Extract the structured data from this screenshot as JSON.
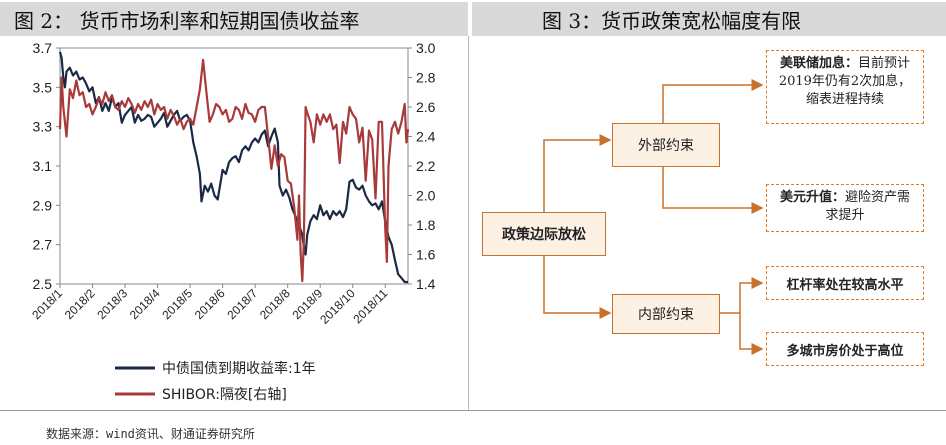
{
  "left_panel": {
    "title": "图 2：  货币市场利率和短期国债收益率"
  },
  "right_panel": {
    "title": "图 3：货币政策宽松幅度有限",
    "center_box": "政策边际放松",
    "upper_mid_box": "外部约束",
    "lower_mid_box": "内部约束",
    "leaf1_title": "美联储加息：",
    "leaf1_body": "目前预计2019年仍有2次加息，缩表进程持续",
    "leaf2_title": "美元升值：",
    "leaf2_body": "避险资产需求提升",
    "leaf3": "杠杆率处在较高水平",
    "leaf4": "多城市房价处于高位",
    "accent_color": "#c9712a",
    "dashed_color": "#e07b28"
  },
  "source": "数据来源：wind资讯、财通证券研究所",
  "chart_data": {
    "type": "line",
    "title": "",
    "x": [
      "2018/1",
      "2018/2",
      "2018/3",
      "2018/4",
      "2018/5",
      "2018/6",
      "2018/7",
      "2018/8",
      "2018/9",
      "2018/10",
      "2018/11"
    ],
    "ylim_left": [
      2.5,
      3.7
    ],
    "yticks_left": [
      "3.7",
      "3.5",
      "3.3",
      "3.1",
      "2.9",
      "2.7",
      "2.5"
    ],
    "ylim_right": [
      1.4,
      3.0
    ],
    "yticks_right": [
      "3.0",
      "2.8",
      "2.6",
      "2.4",
      "2.2",
      "2.0",
      "1.8",
      "1.6",
      "1.4"
    ],
    "series": [
      {
        "name": "中债国债到期收益率:1年",
        "axis": "left",
        "color": "#1a2a45",
        "points": [
          [
            0,
            3.68
          ],
          [
            0.05,
            3.65
          ],
          [
            0.1,
            3.55
          ],
          [
            0.15,
            3.5
          ],
          [
            0.2,
            3.58
          ],
          [
            0.3,
            3.6
          ],
          [
            0.4,
            3.56
          ],
          [
            0.5,
            3.58
          ],
          [
            0.6,
            3.54
          ],
          [
            0.7,
            3.55
          ],
          [
            0.8,
            3.52
          ],
          [
            0.9,
            3.48
          ],
          [
            1.0,
            3.5
          ],
          [
            1.1,
            3.42
          ],
          [
            1.2,
            3.45
          ],
          [
            1.3,
            3.38
          ],
          [
            1.4,
            3.42
          ],
          [
            1.5,
            3.38
          ],
          [
            1.6,
            3.45
          ],
          [
            1.7,
            3.4
          ],
          [
            1.8,
            3.42
          ],
          [
            1.9,
            3.32
          ],
          [
            2.0,
            3.36
          ],
          [
            2.1,
            3.38
          ],
          [
            2.2,
            3.4
          ],
          [
            2.3,
            3.32
          ],
          [
            2.4,
            3.36
          ],
          [
            2.5,
            3.33
          ],
          [
            2.6,
            3.34
          ],
          [
            2.7,
            3.36
          ],
          [
            2.8,
            3.35
          ],
          [
            2.9,
            3.3
          ],
          [
            3.0,
            3.32
          ],
          [
            3.1,
            3.34
          ],
          [
            3.2,
            3.37
          ],
          [
            3.3,
            3.3
          ],
          [
            3.4,
            3.33
          ],
          [
            3.5,
            3.36
          ],
          [
            3.6,
            3.38
          ],
          [
            3.7,
            3.33
          ],
          [
            3.8,
            3.35
          ],
          [
            3.9,
            3.36
          ],
          [
            4.0,
            3.33
          ],
          [
            4.1,
            3.22
          ],
          [
            4.2,
            3.15
          ],
          [
            4.3,
            3.06
          ],
          [
            4.35,
            2.92
          ],
          [
            4.45,
            3.0
          ],
          [
            4.55,
            2.97
          ],
          [
            4.65,
            3.01
          ],
          [
            4.75,
            2.95
          ],
          [
            4.85,
            2.93
          ],
          [
            4.95,
            3.03
          ],
          [
            5.0,
            3.08
          ],
          [
            5.1,
            3.06
          ],
          [
            5.2,
            3.12
          ],
          [
            5.3,
            3.14
          ],
          [
            5.4,
            3.15
          ],
          [
            5.5,
            3.12
          ],
          [
            5.6,
            3.18
          ],
          [
            5.7,
            3.2
          ],
          [
            5.8,
            3.18
          ],
          [
            5.9,
            3.22
          ],
          [
            6.0,
            3.24
          ],
          [
            6.1,
            3.22
          ],
          [
            6.2,
            3.26
          ],
          [
            6.3,
            3.28
          ],
          [
            6.4,
            3.2
          ],
          [
            6.5,
            3.25
          ],
          [
            6.6,
            3.29
          ],
          [
            6.7,
            3.22
          ],
          [
            6.75,
            3.0
          ],
          [
            6.85,
            2.95
          ],
          [
            6.95,
            2.98
          ],
          [
            7.05,
            2.94
          ],
          [
            7.15,
            2.88
          ],
          [
            7.25,
            2.84
          ],
          [
            7.35,
            2.8
          ],
          [
            7.45,
            2.75
          ],
          [
            7.5,
            2.69
          ],
          [
            7.55,
            2.65
          ],
          [
            7.6,
            2.75
          ],
          [
            7.7,
            2.82
          ],
          [
            7.8,
            2.85
          ],
          [
            7.9,
            2.83
          ],
          [
            8.0,
            2.9
          ],
          [
            8.1,
            2.85
          ],
          [
            8.2,
            2.87
          ],
          [
            8.3,
            2.83
          ],
          [
            8.4,
            2.87
          ],
          [
            8.5,
            2.85
          ],
          [
            8.6,
            2.87
          ],
          [
            8.7,
            2.84
          ],
          [
            8.8,
            2.88
          ],
          [
            8.9,
            3.02
          ],
          [
            9.0,
            3.03
          ],
          [
            9.1,
            2.99
          ],
          [
            9.2,
            2.98
          ],
          [
            9.3,
            3.0
          ],
          [
            9.4,
            2.95
          ],
          [
            9.5,
            2.92
          ],
          [
            9.6,
            2.9
          ],
          [
            9.7,
            2.91
          ],
          [
            9.8,
            2.88
          ],
          [
            9.9,
            2.92
          ],
          [
            10.0,
            2.82
          ],
          [
            10.1,
            2.74
          ],
          [
            10.2,
            2.7
          ],
          [
            10.3,
            2.62
          ],
          [
            10.4,
            2.55
          ],
          [
            10.5,
            2.53
          ],
          [
            10.6,
            2.51
          ],
          [
            10.7,
            2.51
          ]
        ]
      },
      {
        "name": "SHIBOR:隔夜[右轴]",
        "axis": "right",
        "color": "#a83a3a",
        "points": [
          [
            0,
            2.45
          ],
          [
            0.05,
            2.8
          ],
          [
            0.1,
            2.6
          ],
          [
            0.2,
            2.4
          ],
          [
            0.3,
            2.72
          ],
          [
            0.4,
            2.66
          ],
          [
            0.5,
            2.78
          ],
          [
            0.6,
            2.68
          ],
          [
            0.7,
            2.7
          ],
          [
            0.8,
            2.6
          ],
          [
            0.9,
            2.62
          ],
          [
            1.0,
            2.55
          ],
          [
            1.1,
            2.6
          ],
          [
            1.2,
            2.66
          ],
          [
            1.3,
            2.62
          ],
          [
            1.4,
            2.7
          ],
          [
            1.5,
            2.64
          ],
          [
            1.6,
            2.68
          ],
          [
            1.7,
            2.6
          ],
          [
            1.8,
            2.58
          ],
          [
            1.9,
            2.64
          ],
          [
            2.0,
            2.6
          ],
          [
            2.1,
            2.66
          ],
          [
            2.2,
            2.62
          ],
          [
            2.3,
            2.56
          ],
          [
            2.4,
            2.62
          ],
          [
            2.5,
            2.58
          ],
          [
            2.6,
            2.64
          ],
          [
            2.7,
            2.6
          ],
          [
            2.8,
            2.65
          ],
          [
            2.9,
            2.55
          ],
          [
            3.0,
            2.62
          ],
          [
            3.1,
            2.58
          ],
          [
            3.2,
            2.6
          ],
          [
            3.3,
            2.52
          ],
          [
            3.4,
            2.58
          ],
          [
            3.5,
            2.54
          ],
          [
            3.6,
            2.48
          ],
          [
            3.7,
            2.52
          ],
          [
            3.8,
            2.45
          ],
          [
            3.9,
            2.5
          ],
          [
            4.0,
            2.52
          ],
          [
            4.1,
            2.48
          ],
          [
            4.2,
            2.6
          ],
          [
            4.3,
            2.72
          ],
          [
            4.4,
            2.92
          ],
          [
            4.5,
            2.7
          ],
          [
            4.6,
            2.5
          ],
          [
            4.7,
            2.55
          ],
          [
            4.8,
            2.62
          ],
          [
            4.9,
            2.6
          ],
          [
            5.0,
            2.55
          ],
          [
            5.1,
            2.58
          ],
          [
            5.2,
            2.5
          ],
          [
            5.3,
            2.52
          ],
          [
            5.4,
            2.6
          ],
          [
            5.5,
            2.58
          ],
          [
            5.6,
            2.52
          ],
          [
            5.7,
            2.62
          ],
          [
            5.8,
            2.56
          ],
          [
            5.9,
            2.55
          ],
          [
            6.0,
            2.5
          ],
          [
            6.1,
            2.58
          ],
          [
            6.2,
            2.6
          ],
          [
            6.3,
            2.6
          ],
          [
            6.4,
            2.4
          ],
          [
            6.5,
            2.18
          ],
          [
            6.6,
            2.34
          ],
          [
            6.7,
            2.2
          ],
          [
            6.8,
            2.28
          ],
          [
            6.9,
            2.26
          ],
          [
            7.0,
            2.1
          ],
          [
            7.1,
            2.08
          ],
          [
            7.2,
            1.92
          ],
          [
            7.3,
            1.7
          ],
          [
            7.35,
            2.0
          ],
          [
            7.4,
            1.6
          ],
          [
            7.45,
            1.42
          ],
          [
            7.5,
            1.7
          ],
          [
            7.55,
            2.6
          ],
          [
            7.6,
            2.56
          ],
          [
            7.7,
            2.5
          ],
          [
            7.8,
            2.36
          ],
          [
            7.9,
            2.55
          ],
          [
            8.0,
            2.48
          ],
          [
            8.1,
            2.55
          ],
          [
            8.2,
            2.5
          ],
          [
            8.3,
            2.55
          ],
          [
            8.4,
            2.45
          ],
          [
            8.5,
            2.48
          ],
          [
            8.6,
            2.22
          ],
          [
            8.7,
            2.5
          ],
          [
            8.8,
            2.42
          ],
          [
            8.9,
            2.6
          ],
          [
            9.0,
            2.55
          ],
          [
            9.1,
            2.52
          ],
          [
            9.2,
            2.36
          ],
          [
            9.3,
            2.46
          ],
          [
            9.4,
            2.1
          ],
          [
            9.5,
            2.44
          ],
          [
            9.6,
            2.38
          ],
          [
            9.7,
            1.98
          ],
          [
            9.8,
            2.5
          ],
          [
            9.9,
            2.5
          ],
          [
            10.0,
            1.78
          ],
          [
            10.05,
            1.55
          ],
          [
            10.1,
            2.2
          ],
          [
            10.2,
            2.45
          ],
          [
            10.3,
            2.5
          ],
          [
            10.4,
            2.42
          ],
          [
            10.5,
            2.5
          ],
          [
            10.6,
            2.62
          ],
          [
            10.65,
            2.36
          ],
          [
            10.7,
            2.45
          ]
        ]
      }
    ],
    "legend_placement": "bottom"
  }
}
